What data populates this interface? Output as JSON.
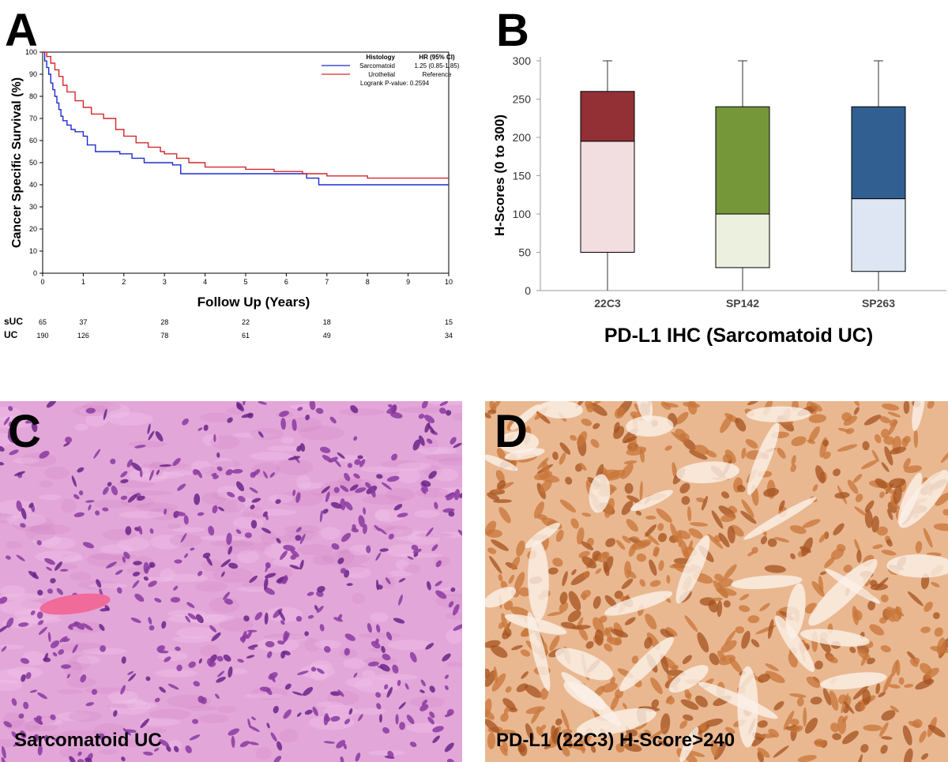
{
  "panels": {
    "a": "A",
    "b": "B",
    "c": "C",
    "d": "D"
  },
  "photo_c_label": "Sarcomatoid UC",
  "photo_d_label": "PD-L1 (22C3) H-Score>240",
  "colors": {
    "sarcomatoid": "#1f2bd0",
    "urothelial": "#d6272a",
    "box_22c3_upper": "#923035",
    "box_22c3_lower": "#f2dde0",
    "box_sp142_upper": "#76963a",
    "box_sp142_lower": "#ebf1de",
    "box_sp263_upper": "#315f91",
    "box_sp263_lower": "#dde6f2",
    "he_stain": "#e3a6d9",
    "dab_stain": "#c8753a"
  },
  "chart_data": [
    {
      "type": "line",
      "step": true,
      "xlabel": "Follow Up (Years)",
      "ylabel": "Cancer Specific Survival (%)",
      "xlim": [
        0,
        10
      ],
      "ylim": [
        0,
        100
      ],
      "x_ticks": [
        0,
        1,
        2,
        3,
        4,
        5,
        6,
        7,
        8,
        9,
        10
      ],
      "y_ticks": [
        0,
        10,
        20,
        30,
        40,
        50,
        60,
        70,
        80,
        90,
        100
      ],
      "legend": {
        "position": "top-right",
        "header_left": "Histology",
        "header_right": "HR (95% CI)",
        "rows": [
          {
            "name": "Sarcomatoid",
            "value": "1.25 (0.85-1.85)"
          },
          {
            "name": "Urothelial",
            "value": "Reference"
          }
        ],
        "pvalue": "Logrank P-value: 0.2594"
      },
      "series": [
        {
          "name": "Sarcomatoid",
          "x": [
            0,
            0.05,
            0.1,
            0.15,
            0.2,
            0.25,
            0.3,
            0.35,
            0.4,
            0.45,
            0.5,
            0.6,
            0.7,
            0.8,
            1.0,
            1.1,
            1.3,
            1.6,
            1.9,
            2.2,
            2.5,
            3.0,
            3.2,
            3.4,
            4.0,
            5.0,
            6.0,
            6.5,
            6.8,
            8.0,
            10.0
          ],
          "y": [
            100,
            96,
            93,
            90,
            86,
            83,
            80,
            77,
            74,
            71,
            69,
            67,
            65,
            64,
            62,
            58,
            55,
            55,
            54,
            52,
            50,
            50,
            49,
            45,
            45,
            45,
            45,
            43,
            40,
            40,
            40
          ]
        },
        {
          "name": "Urothelial",
          "x": [
            0,
            0.1,
            0.2,
            0.3,
            0.4,
            0.5,
            0.6,
            0.8,
            1.0,
            1.2,
            1.5,
            1.8,
            2.0,
            2.3,
            2.6,
            2.9,
            3.0,
            3.3,
            3.6,
            4.0,
            4.5,
            5.0,
            5.7,
            6.4,
            7.0,
            8.0,
            10.0
          ],
          "y": [
            100,
            98,
            95,
            92,
            89,
            85,
            82,
            78,
            75,
            72,
            70,
            65,
            62,
            59,
            57,
            55,
            54,
            52,
            50,
            48,
            48,
            47,
            46,
            45,
            44,
            43,
            43
          ]
        }
      ],
      "risk_table": {
        "x": [
          0,
          1,
          3,
          5,
          7,
          10
        ],
        "rows": [
          {
            "label": "sUC",
            "values": [
              "65",
              "37",
              "28",
              "22",
              "18",
              "15"
            ]
          },
          {
            "label": "UC",
            "values": [
              "190",
              "126",
              "78",
              "61",
              "49",
              "34"
            ]
          }
        ]
      }
    },
    {
      "type": "box",
      "xlabel": "PD-L1 IHC (Sarcomatoid UC)",
      "ylabel": "H-Scores (0 to 300)",
      "ylim": [
        0,
        300
      ],
      "y_ticks": [
        0,
        50,
        100,
        150,
        200,
        250,
        300
      ],
      "categories": [
        "22C3",
        "SP142",
        "SP263"
      ],
      "boxes": [
        {
          "min": 0,
          "q1": 50,
          "median": 195,
          "q3": 260,
          "max": 300
        },
        {
          "min": 0,
          "q1": 30,
          "median": 100,
          "q3": 240,
          "max": 300
        },
        {
          "min": 0,
          "q1": 25,
          "median": 120,
          "q3": 240,
          "max": 300
        }
      ]
    }
  ]
}
